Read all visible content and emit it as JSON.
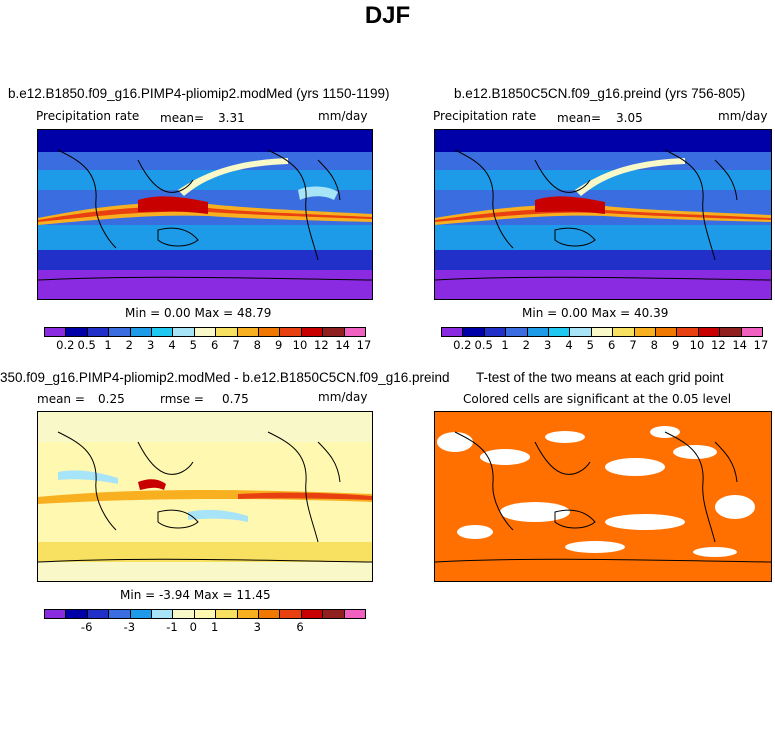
{
  "main_title": "DJF",
  "panels": [
    {
      "title": "b.e12.B1850.f09_g16.PIMP4-pliomip2.modMed (yrs 1150-1199)",
      "field": "Precipitation rate",
      "mean_label": "mean=",
      "mean_value": "3.31",
      "units": "mm/day",
      "minmax": "Min =   0.00 Max =  48.79"
    },
    {
      "title": "b.e12.B1850C5CN.f09_g16.preind (yrs 756-805)",
      "field": "Precipitation rate",
      "mean_label": "mean=",
      "mean_value": "3.05",
      "units": "mm/day",
      "minmax": "Min =   0.00 Max =  40.39"
    },
    {
      "title": "350.f09_g16.PIMP4-pliomip2.modMed - b.e12.B1850C5CN.f09_g16.preind",
      "mean_label": "mean =",
      "mean_value": "0.25",
      "rmse_label": "rmse =",
      "rmse_value": "0.75",
      "units": "mm/day",
      "minmax": "Min =  -3.94 Max =  11.45"
    },
    {
      "title": "T-test of the two means at each grid point",
      "subtitle": "Colored cells are significant at the 0.05 level"
    }
  ],
  "abs_colors": [
    "#8a2be2",
    "#0000a8",
    "#2030c8",
    "#3a6ee0",
    "#1e9be8",
    "#1ec8f0",
    "#a8e4f8",
    "#f8f8c8",
    "#f8e060",
    "#f8b020",
    "#f07800",
    "#e84010",
    "#c80000",
    "#902020",
    "#f060c0"
  ],
  "abs_ticks": [
    "0.2",
    "0.5",
    "1",
    "2",
    "3",
    "4",
    "5",
    "6",
    "7",
    "8",
    "9",
    "10",
    "12",
    "14",
    "17"
  ],
  "diff_colors": [
    "#8a2be2",
    "#0000a8",
    "#2030c8",
    "#3a6ee0",
    "#1e9be8",
    "#a8e4f8",
    "#f8f8c8",
    "#fff8b0",
    "#f8e060",
    "#f8b020",
    "#f07800",
    "#e84010",
    "#c80000",
    "#902020",
    "#f060c0"
  ],
  "diff_ticks": [
    "-6",
    "-3",
    "-1",
    "0",
    "1",
    "3",
    "6"
  ],
  "ttest_color": "#ff7000"
}
